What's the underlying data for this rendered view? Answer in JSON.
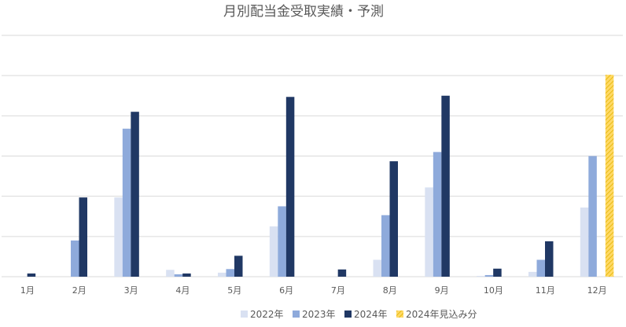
{
  "chart_data": {
    "type": "bar",
    "title": "月別配当金受取実績・予測",
    "categories": [
      "1月",
      "2月",
      "3月",
      "4月",
      "5月",
      "6月",
      "7月",
      "8月",
      "9月",
      "10月",
      "11月",
      "12月"
    ],
    "ylim": [
      0,
      6
    ],
    "grid": true,
    "y_tick_labels_visible": false,
    "legend_position": "bottom",
    "series": [
      {
        "name": "2022年",
        "color": "#d9e1f2",
        "values": [
          0,
          0,
          1.97,
          0.17,
          0.1,
          1.25,
          0,
          0.42,
          2.22,
          0.02,
          0.12,
          1.72
        ]
      },
      {
        "name": "2023年",
        "color": "#8eaadb",
        "values": [
          0,
          0.9,
          3.68,
          0.06,
          0.19,
          1.75,
          0,
          1.53,
          3.1,
          0.04,
          0.42,
          3.0
        ]
      },
      {
        "name": "2024年",
        "color": "#203864",
        "values": [
          0.08,
          1.97,
          4.1,
          0.08,
          0.52,
          4.47,
          0.18,
          2.87,
          4.5,
          0.2,
          0.88,
          0
        ]
      },
      {
        "name": "2024年見込み分",
        "color": "#ffd966",
        "pattern": "diagonal-hatch",
        "values": [
          0,
          0,
          0,
          0,
          0,
          0,
          0,
          0,
          0,
          0,
          0,
          5.02
        ]
      }
    ]
  }
}
